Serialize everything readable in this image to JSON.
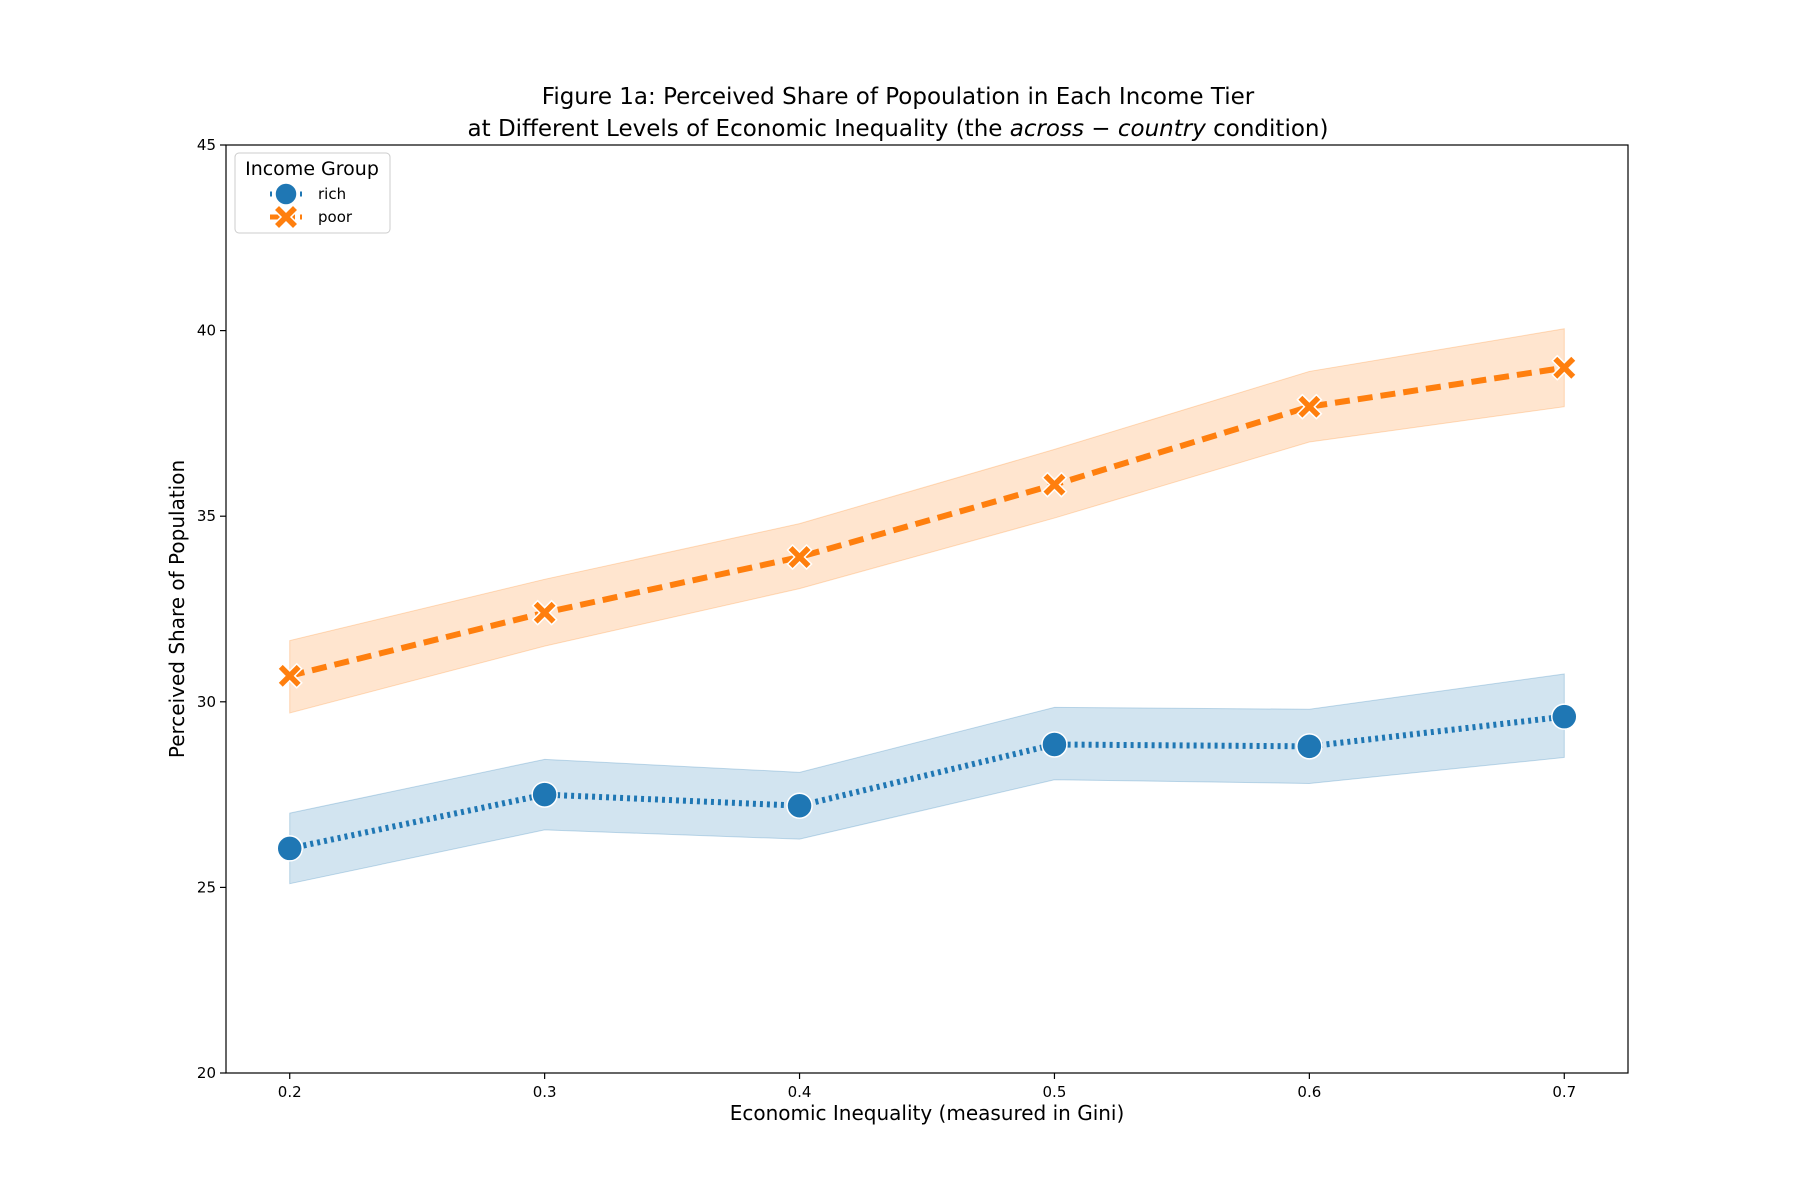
{
  "chart_data": {
    "type": "line",
    "title_line1": "Figure 1a: Perceived Share of Popoulation in Each Income Tier",
    "title_line2_pre": "at Different Levels of Economic Inequality (the ",
    "title_line2_italic": "across − country",
    "title_line2_post": " condition)",
    "xlabel": "Economic Inequality (measured in Gini)",
    "ylabel": "Perceived Share of Population",
    "x": [
      0.2,
      0.3,
      0.4,
      0.5,
      0.6,
      0.7
    ],
    "x_tick_labels": [
      "0.2",
      "0.3",
      "0.4",
      "0.5",
      "0.6",
      "0.7"
    ],
    "xlim": [
      0.175,
      0.725
    ],
    "ylim": [
      20,
      45
    ],
    "y_ticks": [
      20,
      25,
      30,
      35,
      40,
      45
    ],
    "y_tick_labels": [
      "20",
      "25",
      "30",
      "35",
      "40",
      "45"
    ],
    "grid": false,
    "legend": {
      "title": "Income Group",
      "placement": "top-left"
    },
    "series": [
      {
        "name": "rich",
        "color": "#1f77b4",
        "line_style": "dotted",
        "marker": "circle",
        "values": [
          26.05,
          27.5,
          27.2,
          28.85,
          28.8,
          29.6
        ],
        "ci_lower": [
          25.1,
          26.55,
          26.3,
          27.9,
          27.8,
          28.5
        ],
        "ci_upper": [
          27.0,
          28.45,
          28.1,
          29.85,
          29.8,
          30.75
        ]
      },
      {
        "name": "poor",
        "color": "#ff7f0e",
        "line_style": "dashed",
        "marker": "x",
        "values": [
          30.7,
          32.4,
          33.9,
          35.85,
          37.95,
          39.0
        ],
        "ci_lower": [
          29.7,
          31.5,
          33.05,
          34.95,
          37.0,
          37.95
        ],
        "ci_upper": [
          31.65,
          33.3,
          34.8,
          36.8,
          38.9,
          40.05
        ]
      }
    ]
  }
}
